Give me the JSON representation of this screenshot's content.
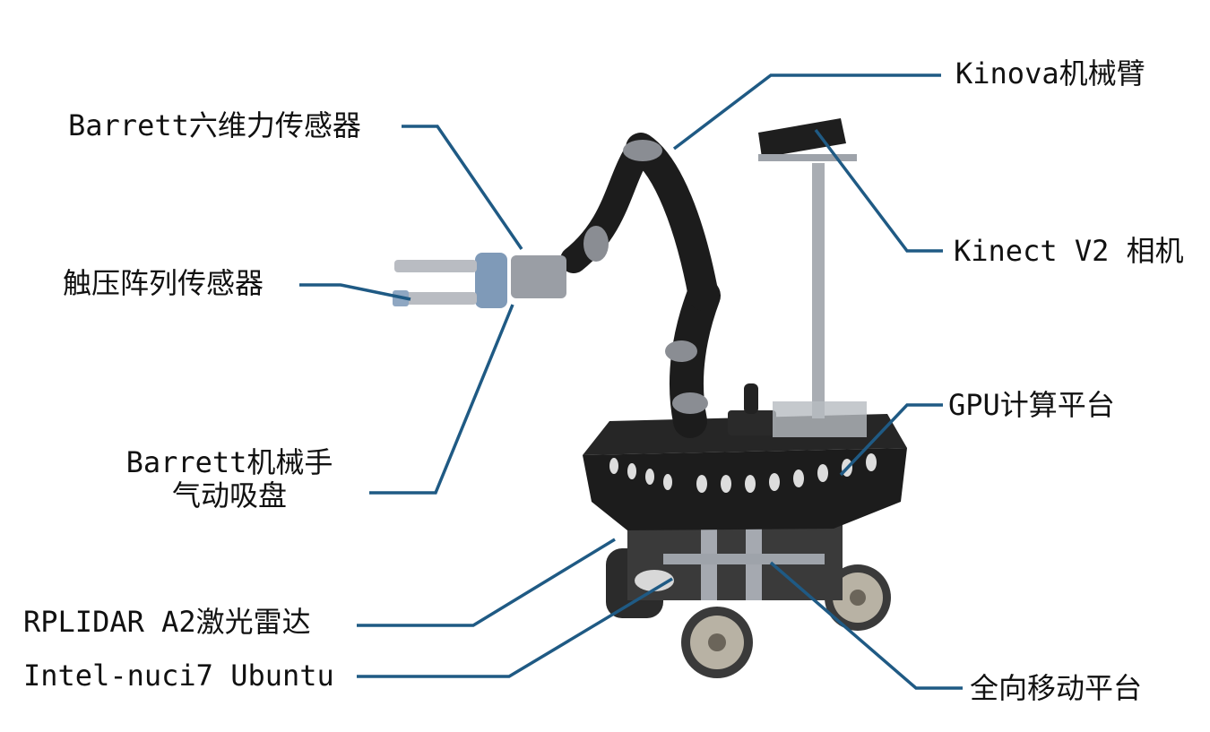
{
  "colors": {
    "leader_line": "#1f5a84",
    "robot_dark": "#1c1c1c",
    "robot_grey": "#8a8d93",
    "sensor_blue": "#7f9ab8",
    "wheel_silver": "#b8b2a4"
  },
  "labels": {
    "kinova_arm": "Kinova机械臂",
    "barrett_ft_sensor": "Barrett六维力传感器",
    "kinect_camera": "Kinect V2 相机",
    "tactile_sensor": "触压阵列传感器",
    "gpu_platform": "GPU计算平台",
    "barrett_hand_line1": "Barrett机械手",
    "barrett_hand_line2": "气动吸盘",
    "rplidar": "RPLIDAR A2激光雷达",
    "intel_nuc": "Intel-nuci7 Ubuntu",
    "mobile_platform": "全向移动平台"
  }
}
